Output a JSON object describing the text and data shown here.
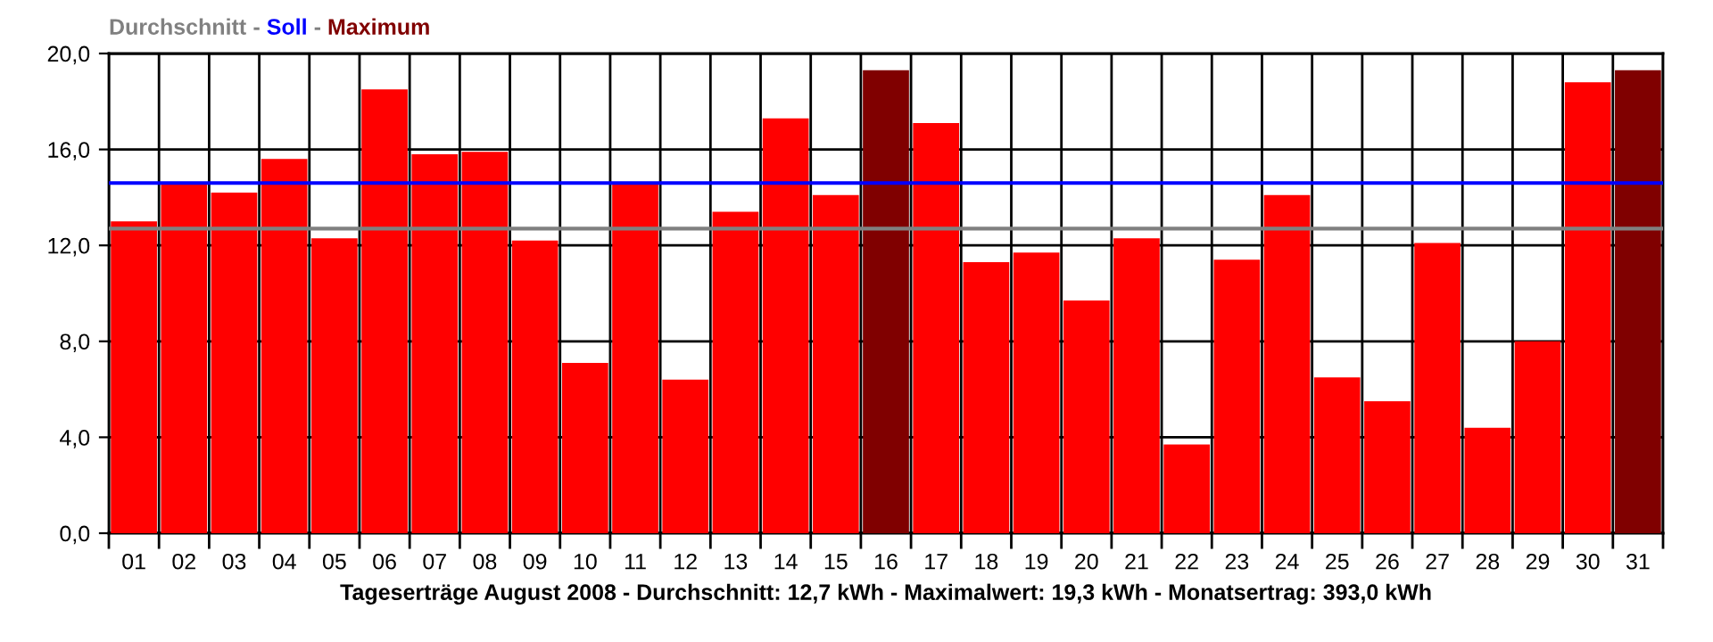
{
  "chart_data": {
    "type": "bar",
    "stacked": true,
    "title": "Durchschnitt - Soll - Maximum",
    "xlabel": "Tageserträge August 2008 - Durchschnitt: 12,7 kWh - Maximalwert: 19,3 kWh - Monatsertrag: 393,0 kWh",
    "categories": [
      "01",
      "02",
      "03",
      "04",
      "05",
      "06",
      "07",
      "08",
      "09",
      "10",
      "11",
      "12",
      "13",
      "14",
      "15",
      "16",
      "17",
      "18",
      "19",
      "20",
      "21",
      "22",
      "23",
      "24",
      "25",
      "26",
      "27",
      "28",
      "29",
      "30",
      "31"
    ],
    "series": [
      {
        "color": "#ff0000",
        "values": [
          13.0,
          14.6,
          14.2,
          15.6,
          12.3,
          18.5,
          15.8,
          15.9,
          12.2,
          7.1,
          14.6,
          6.4,
          13.4,
          17.3,
          14.1,
          null,
          17.1,
          11.3,
          11.7,
          9.7,
          12.3,
          3.7,
          11.4,
          14.1,
          6.5,
          5.5,
          12.1,
          4.4,
          8.0,
          18.8,
          null
        ]
      },
      {
        "color": "#800000",
        "values": [
          null,
          null,
          null,
          null,
          null,
          null,
          null,
          null,
          null,
          null,
          null,
          null,
          null,
          null,
          null,
          19.3,
          null,
          null,
          null,
          null,
          null,
          null,
          null,
          null,
          null,
          null,
          null,
          null,
          null,
          null,
          19.3
        ]
      }
    ],
    "ylim": [
      0,
      20
    ],
    "yticks": [
      {
        "value": 0,
        "label": "0,0"
      },
      {
        "value": 4,
        "label": "4,0"
      },
      {
        "value": 8,
        "label": "8,0"
      },
      {
        "value": 12,
        "label": "12,0"
      },
      {
        "value": 16,
        "label": "16,0"
      },
      {
        "value": 20,
        "label": "20,0"
      }
    ],
    "ref_lines": [
      {
        "axis": "y",
        "value": 12.7,
        "color": "#808080"
      },
      {
        "axis": "y",
        "value": 14.6,
        "color": "#0000ff"
      }
    ],
    "grid": true
  }
}
